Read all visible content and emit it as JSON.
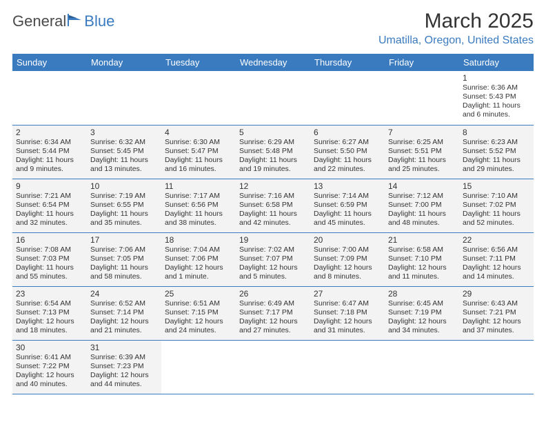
{
  "logo": {
    "text1": "General",
    "text2": "Blue"
  },
  "title": "March 2025",
  "location": "Umatilla, Oregon, United States",
  "colors": {
    "header_bg": "#3a7abf",
    "header_text": "#ffffff",
    "accent": "#3a7abf",
    "text": "#333333",
    "shaded_bg": "#f3f3f3",
    "page_bg": "#ffffff",
    "border": "#3a7abf"
  },
  "typography": {
    "title_fontsize": 30,
    "location_fontsize": 16,
    "dayheader_fontsize": 13,
    "daynum_fontsize": 12,
    "body_fontsize": 10.5
  },
  "day_headers": [
    "Sunday",
    "Monday",
    "Tuesday",
    "Wednesday",
    "Thursday",
    "Friday",
    "Saturday"
  ],
  "weeks": [
    [
      {
        "blank": true
      },
      {
        "blank": true
      },
      {
        "blank": true
      },
      {
        "blank": true
      },
      {
        "blank": true
      },
      {
        "blank": true
      },
      {
        "num": "1",
        "sunrise": "Sunrise: 6:36 AM",
        "sunset": "Sunset: 5:43 PM",
        "daylight": "Daylight: 11 hours and 6 minutes."
      }
    ],
    [
      {
        "num": "2",
        "sunrise": "Sunrise: 6:34 AM",
        "sunset": "Sunset: 5:44 PM",
        "daylight": "Daylight: 11 hours and 9 minutes."
      },
      {
        "num": "3",
        "sunrise": "Sunrise: 6:32 AM",
        "sunset": "Sunset: 5:45 PM",
        "daylight": "Daylight: 11 hours and 13 minutes."
      },
      {
        "num": "4",
        "sunrise": "Sunrise: 6:30 AM",
        "sunset": "Sunset: 5:47 PM",
        "daylight": "Daylight: 11 hours and 16 minutes."
      },
      {
        "num": "5",
        "sunrise": "Sunrise: 6:29 AM",
        "sunset": "Sunset: 5:48 PM",
        "daylight": "Daylight: 11 hours and 19 minutes."
      },
      {
        "num": "6",
        "sunrise": "Sunrise: 6:27 AM",
        "sunset": "Sunset: 5:50 PM",
        "daylight": "Daylight: 11 hours and 22 minutes."
      },
      {
        "num": "7",
        "sunrise": "Sunrise: 6:25 AM",
        "sunset": "Sunset: 5:51 PM",
        "daylight": "Daylight: 11 hours and 25 minutes."
      },
      {
        "num": "8",
        "sunrise": "Sunrise: 6:23 AM",
        "sunset": "Sunset: 5:52 PM",
        "daylight": "Daylight: 11 hours and 29 minutes."
      }
    ],
    [
      {
        "num": "9",
        "sunrise": "Sunrise: 7:21 AM",
        "sunset": "Sunset: 6:54 PM",
        "daylight": "Daylight: 11 hours and 32 minutes."
      },
      {
        "num": "10",
        "sunrise": "Sunrise: 7:19 AM",
        "sunset": "Sunset: 6:55 PM",
        "daylight": "Daylight: 11 hours and 35 minutes."
      },
      {
        "num": "11",
        "sunrise": "Sunrise: 7:17 AM",
        "sunset": "Sunset: 6:56 PM",
        "daylight": "Daylight: 11 hours and 38 minutes."
      },
      {
        "num": "12",
        "sunrise": "Sunrise: 7:16 AM",
        "sunset": "Sunset: 6:58 PM",
        "daylight": "Daylight: 11 hours and 42 minutes."
      },
      {
        "num": "13",
        "sunrise": "Sunrise: 7:14 AM",
        "sunset": "Sunset: 6:59 PM",
        "daylight": "Daylight: 11 hours and 45 minutes."
      },
      {
        "num": "14",
        "sunrise": "Sunrise: 7:12 AM",
        "sunset": "Sunset: 7:00 PM",
        "daylight": "Daylight: 11 hours and 48 minutes."
      },
      {
        "num": "15",
        "sunrise": "Sunrise: 7:10 AM",
        "sunset": "Sunset: 7:02 PM",
        "daylight": "Daylight: 11 hours and 52 minutes."
      }
    ],
    [
      {
        "num": "16",
        "sunrise": "Sunrise: 7:08 AM",
        "sunset": "Sunset: 7:03 PM",
        "daylight": "Daylight: 11 hours and 55 minutes."
      },
      {
        "num": "17",
        "sunrise": "Sunrise: 7:06 AM",
        "sunset": "Sunset: 7:05 PM",
        "daylight": "Daylight: 11 hours and 58 minutes."
      },
      {
        "num": "18",
        "sunrise": "Sunrise: 7:04 AM",
        "sunset": "Sunset: 7:06 PM",
        "daylight": "Daylight: 12 hours and 1 minute."
      },
      {
        "num": "19",
        "sunrise": "Sunrise: 7:02 AM",
        "sunset": "Sunset: 7:07 PM",
        "daylight": "Daylight: 12 hours and 5 minutes."
      },
      {
        "num": "20",
        "sunrise": "Sunrise: 7:00 AM",
        "sunset": "Sunset: 7:09 PM",
        "daylight": "Daylight: 12 hours and 8 minutes."
      },
      {
        "num": "21",
        "sunrise": "Sunrise: 6:58 AM",
        "sunset": "Sunset: 7:10 PM",
        "daylight": "Daylight: 12 hours and 11 minutes."
      },
      {
        "num": "22",
        "sunrise": "Sunrise: 6:56 AM",
        "sunset": "Sunset: 7:11 PM",
        "daylight": "Daylight: 12 hours and 14 minutes."
      }
    ],
    [
      {
        "num": "23",
        "sunrise": "Sunrise: 6:54 AM",
        "sunset": "Sunset: 7:13 PM",
        "daylight": "Daylight: 12 hours and 18 minutes."
      },
      {
        "num": "24",
        "sunrise": "Sunrise: 6:52 AM",
        "sunset": "Sunset: 7:14 PM",
        "daylight": "Daylight: 12 hours and 21 minutes."
      },
      {
        "num": "25",
        "sunrise": "Sunrise: 6:51 AM",
        "sunset": "Sunset: 7:15 PM",
        "daylight": "Daylight: 12 hours and 24 minutes."
      },
      {
        "num": "26",
        "sunrise": "Sunrise: 6:49 AM",
        "sunset": "Sunset: 7:17 PM",
        "daylight": "Daylight: 12 hours and 27 minutes."
      },
      {
        "num": "27",
        "sunrise": "Sunrise: 6:47 AM",
        "sunset": "Sunset: 7:18 PM",
        "daylight": "Daylight: 12 hours and 31 minutes."
      },
      {
        "num": "28",
        "sunrise": "Sunrise: 6:45 AM",
        "sunset": "Sunset: 7:19 PM",
        "daylight": "Daylight: 12 hours and 34 minutes."
      },
      {
        "num": "29",
        "sunrise": "Sunrise: 6:43 AM",
        "sunset": "Sunset: 7:21 PM",
        "daylight": "Daylight: 12 hours and 37 minutes."
      }
    ],
    [
      {
        "num": "30",
        "sunrise": "Sunrise: 6:41 AM",
        "sunset": "Sunset: 7:22 PM",
        "daylight": "Daylight: 12 hours and 40 minutes."
      },
      {
        "num": "31",
        "sunrise": "Sunrise: 6:39 AM",
        "sunset": "Sunset: 7:23 PM",
        "daylight": "Daylight: 12 hours and 44 minutes."
      },
      {
        "blank": true
      },
      {
        "blank": true
      },
      {
        "blank": true
      },
      {
        "blank": true
      },
      {
        "blank": true
      }
    ]
  ]
}
